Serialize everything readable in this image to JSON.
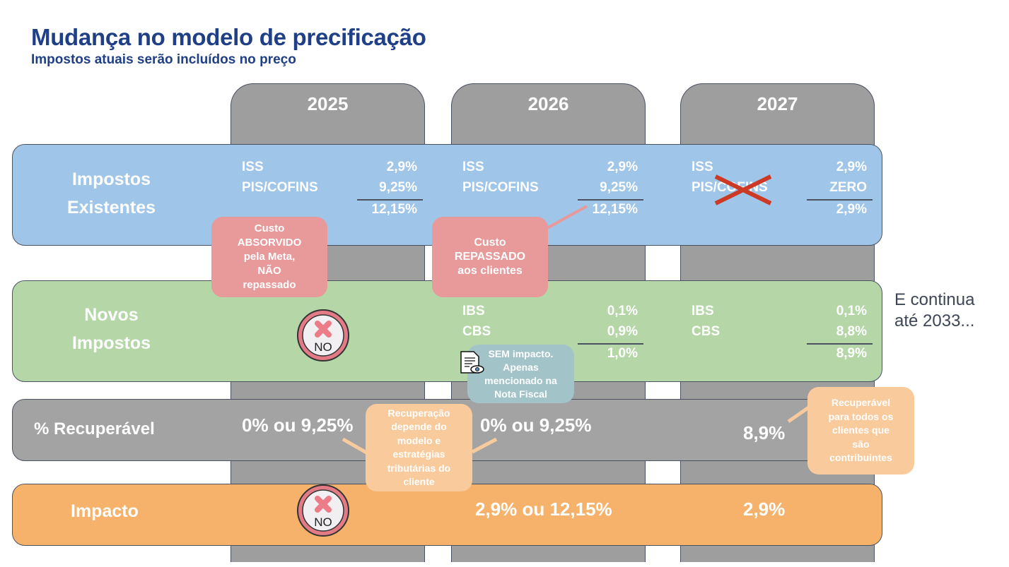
{
  "title": "Mudança no modelo de precificação",
  "subtitle": "Impostos atuais serão incluídos no preço",
  "years": [
    "2025",
    "2026",
    "2027"
  ],
  "rows": {
    "existentes": {
      "label1": "Impostos",
      "label2": "Existentes",
      "y2025": {
        "iss_label": "ISS",
        "iss": "2,9%",
        "pis_label": "PIS/COFINS",
        "pis": "9,25%",
        "total": "12,15%"
      },
      "y2026": {
        "iss_label": "ISS",
        "iss": "2,9%",
        "pis_label": "PIS/COFINS",
        "pis": "9,25%",
        "total": "12,15%"
      },
      "y2027": {
        "iss_label": "ISS",
        "iss": "2,9%",
        "pis_label": "PIS/COFINS",
        "pis": "ZERO",
        "total": "2,9%"
      }
    },
    "novos": {
      "label1": "Novos",
      "label2": "Impostos",
      "no_icon_text": "NO",
      "y2026": {
        "ibs_label": "IBS",
        "ibs": "0,1%",
        "cbs_label": "CBS",
        "cbs": "0,9%",
        "total": "1,0%"
      },
      "y2027": {
        "ibs_label": "IBS",
        "ibs": "0,1%",
        "cbs_label": "CBS",
        "cbs": "8,8%",
        "total": "8,9%"
      }
    },
    "recuperavel": {
      "label": "% Recuperável",
      "y2025": "0% ou 9,25%",
      "y2026": "0% ou 9,25%",
      "y2027": "8,9%"
    },
    "impacto": {
      "label": "Impacto",
      "no_icon_text": "NO",
      "y2026": "2,9% ou 12,15%",
      "y2027": "2,9%"
    }
  },
  "callouts": {
    "absorvido": [
      "Custo",
      "ABSORVIDO",
      "pela Meta,",
      "NÃO",
      "repassado"
    ],
    "repassado": [
      "Custo",
      "REPASSADO",
      "aos clientes"
    ],
    "sem_impacto": [
      "SEM impacto.",
      "Apenas",
      "mencionado na",
      "Nota Fiscal"
    ],
    "recuperacao": [
      "Recuperação",
      "depende do",
      "modelo e",
      "estratégias",
      "tributárias do",
      "cliente"
    ],
    "recuperavel": [
      "Recuperável",
      "para todos os",
      "clientes que",
      "são",
      "contribuintes"
    ]
  },
  "continua": [
    "E continua",
    "até 2033..."
  ],
  "colors": {
    "title": "#1f3f87",
    "blue": "#9fc5e8",
    "green": "#b5d7a8",
    "gray": "#a3a3a3",
    "orange": "#f6b26b",
    "pink": "#e8999a",
    "teal": "#a2c4c9",
    "peach": "#f9cb9c"
  }
}
